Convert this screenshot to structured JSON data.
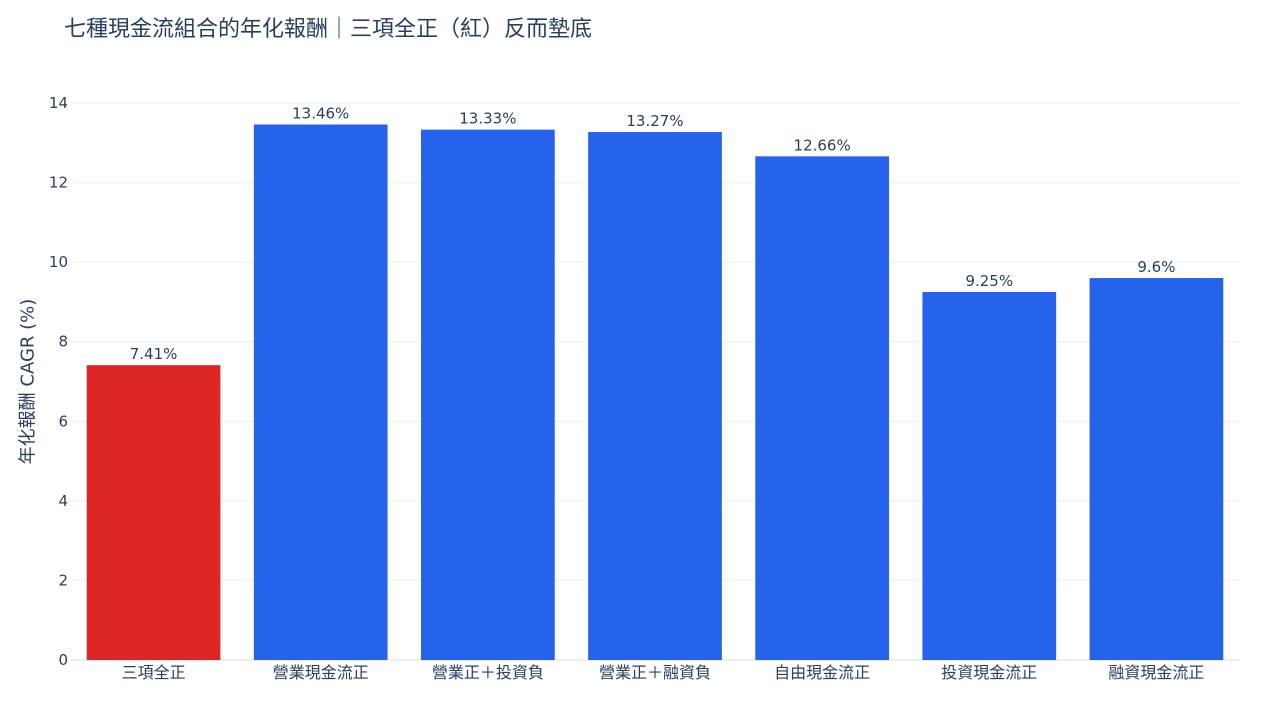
{
  "chart_data": {
    "type": "bar",
    "title": "七種現金流組合的年化報酬｜三項全正（紅）反而墊底",
    "ylabel": "年化報酬 CAGR (%)",
    "xlabel": "",
    "categories": [
      "三項全正",
      "營業現金流正",
      "營業正＋投資負",
      "營業正＋融資負",
      "自由現金流正",
      "投資現金流正",
      "融資現金流正"
    ],
    "values": [
      7.41,
      13.46,
      13.33,
      13.27,
      12.66,
      9.25,
      9.6
    ],
    "data_labels": [
      "7.41%",
      "13.46%",
      "13.33%",
      "13.27%",
      "12.66%",
      "9.25%",
      "9.6%"
    ],
    "bar_colors": [
      "#dc2626",
      "#2563eb",
      "#2563eb",
      "#2563eb",
      "#2563eb",
      "#2563eb",
      "#2563eb"
    ],
    "ylim": [
      0,
      14
    ],
    "yticks": [
      0,
      2,
      4,
      6,
      8,
      10,
      12,
      14
    ],
    "grid": true,
    "legend": "none"
  }
}
